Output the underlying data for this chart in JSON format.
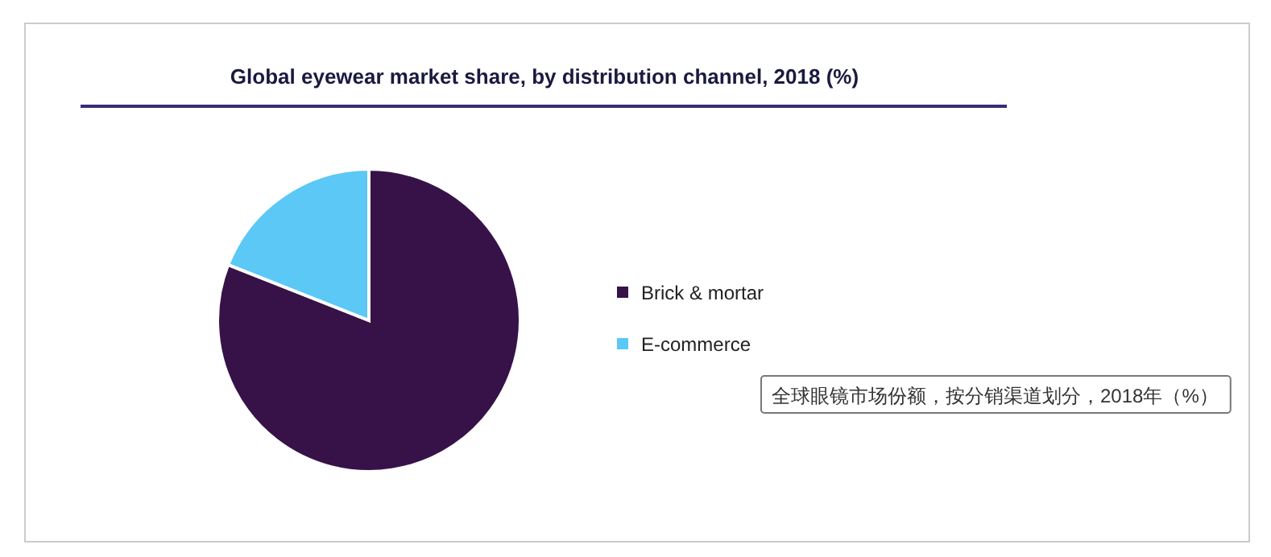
{
  "chart_data": {
    "type": "pie",
    "title": "Global eyewear market share, by distribution channel, 2018 (%)",
    "categories": [
      "Brick & mortar",
      "E-commerce"
    ],
    "values": [
      81,
      19
    ],
    "colors": [
      "#371248",
      "#5bc8f5"
    ],
    "legend": "right",
    "annotations": [
      "全球眼镜市场份额，按分销渠道划分，2018年（%）"
    ]
  }
}
